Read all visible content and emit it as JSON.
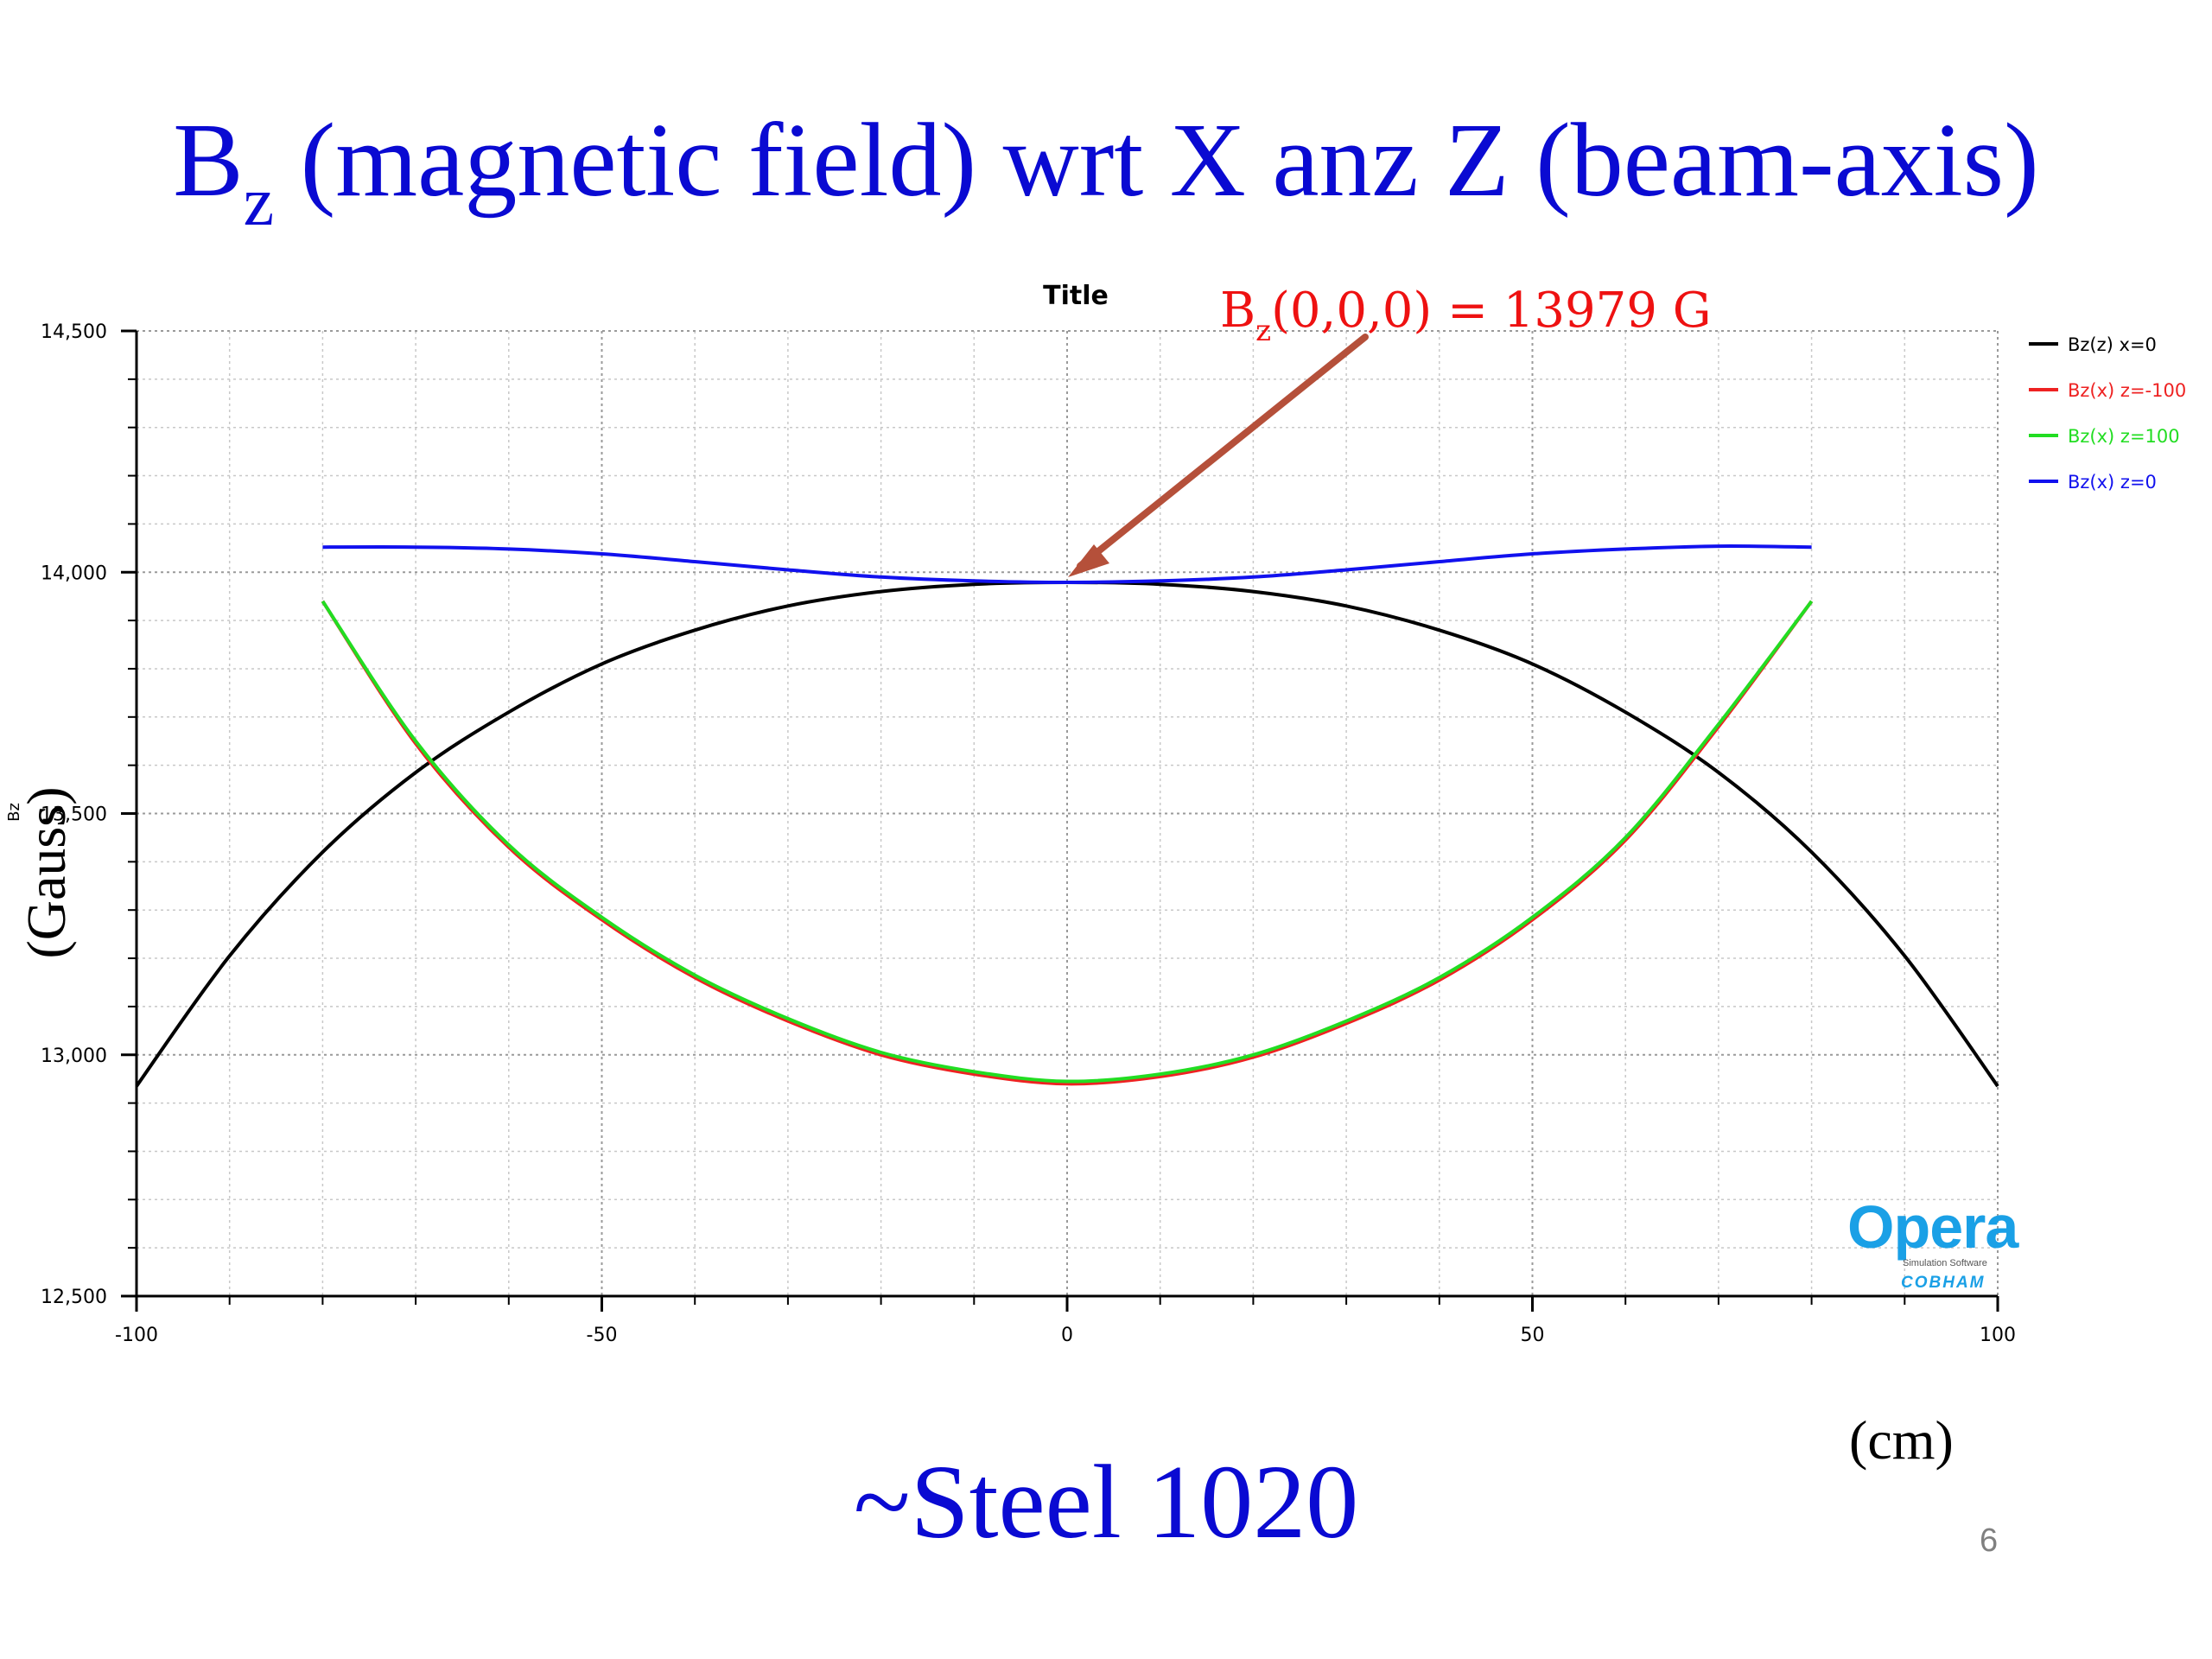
{
  "slide": {
    "title_main": "B",
    "title_sub": "z",
    "title_rest": " (magnetic field) wrt X anz Z (beam-axis)",
    "footer": "~Steel 1020",
    "x_unit": "(cm)",
    "y_unit": "(Gauss)",
    "page_number": "6"
  },
  "annotation": {
    "text_main": "B",
    "text_sub": "z",
    "text_rest": "(0,0,0) = 13979 G",
    "color": "#ee1111",
    "arrow_color": "#b5503a"
  },
  "logo": {
    "name": "Opera",
    "subtitle": "Simulation Software",
    "brand": "COBHAM"
  },
  "chart_data": {
    "type": "line",
    "title": "Title",
    "xlabel": "",
    "ylabel": "Bz",
    "xlim": [
      -100,
      100
    ],
    "ylim": [
      12500,
      14500
    ],
    "xticks": [
      -100,
      -50,
      0,
      50,
      100
    ],
    "xtick_labels": [
      "-100",
      "-50",
      "0",
      "50",
      "100"
    ],
    "yticks": [
      12500,
      13000,
      13500,
      14000,
      14500
    ],
    "ytick_labels": [
      "12,500",
      "13,000",
      "13,500",
      "14,000",
      "14,500"
    ],
    "grid": true,
    "legend_position": "right",
    "series": [
      {
        "name": "Bz(z) x=0",
        "color": "#000000",
        "x": [
          -100,
          -90,
          -80,
          -70,
          -60,
          -50,
          -40,
          -30,
          -20,
          -10,
          0,
          10,
          20,
          30,
          40,
          50,
          60,
          70,
          80,
          90,
          100
        ],
        "y": [
          12935,
          13205,
          13420,
          13585,
          13710,
          13810,
          13880,
          13930,
          13960,
          13975,
          13979,
          13975,
          13960,
          13930,
          13880,
          13810,
          13710,
          13585,
          13420,
          13205,
          12935
        ]
      },
      {
        "name": "Bz(x) z=-100",
        "color": "#ee2222",
        "x": [
          -80,
          -70,
          -60,
          -50,
          -40,
          -30,
          -20,
          -10,
          0,
          10,
          20,
          30,
          40,
          50,
          60,
          70,
          80
        ],
        "y": [
          13940,
          13645,
          13430,
          13280,
          13160,
          13070,
          13000,
          12960,
          12940,
          12955,
          12995,
          13065,
          13155,
          13280,
          13445,
          13680,
          13940
        ]
      },
      {
        "name": "Bz(x) z=100",
        "color": "#22dd22",
        "x": [
          -80,
          -70,
          -60,
          -50,
          -40,
          -30,
          -20,
          -10,
          0,
          10,
          20,
          30,
          40,
          50,
          60,
          70,
          80
        ],
        "y": [
          13940,
          13650,
          13435,
          13285,
          13165,
          13075,
          13005,
          12965,
          12945,
          12960,
          13000,
          13070,
          13160,
          13285,
          13450,
          13685,
          13940
        ]
      },
      {
        "name": "Bz(x) z=0",
        "color": "#1111ee",
        "x": [
          -80,
          -70,
          -60,
          -50,
          -40,
          -30,
          -20,
          -10,
          0,
          10,
          20,
          30,
          40,
          50,
          60,
          70,
          80
        ],
        "y": [
          14052,
          14052,
          14048,
          14038,
          14022,
          14005,
          13990,
          13982,
          13979,
          13982,
          13990,
          14005,
          14022,
          14038,
          14048,
          14054,
          14052
        ]
      }
    ]
  }
}
